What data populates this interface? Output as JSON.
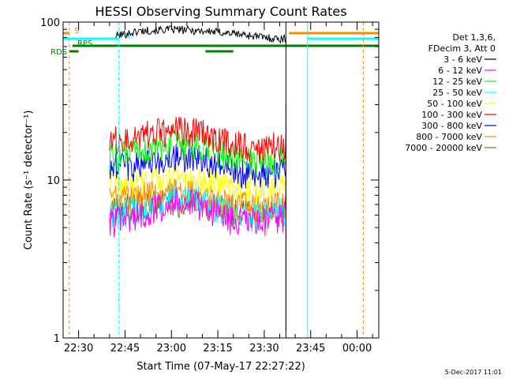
{
  "chart_data": {
    "type": "line",
    "title": "HESSI Observing Summary Count Rates",
    "xlabel": "Start Time (07-May-17 22:27:22)",
    "ylabel": "Count Rate (s⁻¹ detector⁻¹)",
    "y_scale": "log",
    "ylim": [
      1,
      100
    ],
    "xlim": [
      "22:25",
      "00:07"
    ],
    "x_ticks": [
      "22:30",
      "22:45",
      "23:00",
      "23:15",
      "23:30",
      "23:45",
      "00:00"
    ],
    "y_ticks": [
      "1",
      "10",
      "100"
    ],
    "legend": {
      "placement": "right",
      "header": [
        "Det 1,3,6,",
        "FDecim 3, Att 0"
      ],
      "entries": [
        "3 - 6 keV",
        "6 - 12 keV",
        "12 - 25 keV",
        "25 - 50 keV",
        "50 - 100 keV",
        "100 - 300 keV",
        "300 - 800 keV",
        "800 - 7000 keV",
        "7000 - 20000 keV"
      ]
    },
    "series": [
      {
        "name": "3 - 6 keV",
        "color": "#000000",
        "x": [
          "22:42",
          "22:50",
          "23:00",
          "23:10",
          "23:20",
          "23:30",
          "23:37"
        ],
        "y": [
          82,
          88,
          90,
          88,
          85,
          80,
          78
        ]
      },
      {
        "name": "6 - 12 keV",
        "color": "#ff00ff",
        "x": [
          "22:40",
          "22:50",
          "23:00",
          "23:10",
          "23:20",
          "23:30",
          "23:37"
        ],
        "y": [
          5.5,
          6.0,
          7.5,
          7.0,
          5.5,
          5.5,
          6.0
        ]
      },
      {
        "name": "12 - 25 keV",
        "color": "#00ff00",
        "x": [
          "22:40",
          "22:50",
          "23:00",
          "23:10",
          "23:20",
          "23:30",
          "23:37"
        ],
        "y": [
          14,
          15,
          17,
          16,
          14,
          13,
          14
        ]
      },
      {
        "name": "25 - 50 keV",
        "color": "#00ffff",
        "x": [
          "22:40",
          "22:50",
          "23:00",
          "23:10",
          "23:20",
          "23:30",
          "23:37"
        ],
        "y": [
          6.0,
          6.5,
          8.0,
          7.5,
          6.0,
          6.0,
          6.5
        ]
      },
      {
        "name": "50 - 100 keV",
        "color": "#ffff00",
        "x": [
          "22:40",
          "22:50",
          "23:00",
          "23:10",
          "23:20",
          "23:30",
          "23:37"
        ],
        "y": [
          9.0,
          9.5,
          10.5,
          10.0,
          9.0,
          8.5,
          9.0
        ]
      },
      {
        "name": "100 - 300 keV",
        "color": "#ff0000",
        "x": [
          "22:40",
          "22:50",
          "23:00",
          "23:10",
          "23:20",
          "23:30",
          "23:37"
        ],
        "y": [
          18,
          19,
          21,
          20,
          17,
          16,
          17
        ]
      },
      {
        "name": "300 - 800 keV",
        "color": "#0000ff",
        "x": [
          "22:40",
          "22:50",
          "23:00",
          "23:10",
          "23:20",
          "23:30",
          "23:37"
        ],
        "y": [
          12,
          12.5,
          14,
          13.5,
          11.5,
          11,
          11.5
        ]
      },
      {
        "name": "800 - 7000 keV",
        "color": "#ff8800",
        "x": [
          "22:40",
          "22:50",
          "23:00",
          "23:10",
          "23:20",
          "23:30",
          "23:37"
        ],
        "y": [
          7.5,
          8.0,
          8.5,
          8.0,
          7.0,
          6.8,
          7.0
        ]
      },
      {
        "name": "7000 - 20000 keV",
        "color": "#996600",
        "x": [
          "22:40",
          "22:50",
          "23:00",
          "23:10",
          "23:20",
          "23:30",
          "23:37"
        ],
        "y": [
          6.5,
          7.0,
          7.5,
          7.0,
          6.5,
          6.3,
          6.5
        ]
      }
    ],
    "flag_bars": [
      {
        "label": "S",
        "color": "#ff8800",
        "segments": [
          [
            "22:25",
            "22:27"
          ],
          [
            "23:38",
            "00:07"
          ]
        ]
      },
      {
        "label": "N",
        "color": "#00ffff",
        "segments": [
          [
            "22:25",
            "22:43"
          ],
          [
            "23:44",
            "00:07"
          ]
        ]
      },
      {
        "label": "RDS",
        "color": "#008000",
        "segments": [
          [
            "22:27",
            "22:30"
          ],
          [
            "23:11",
            "23:20"
          ]
        ]
      },
      {
        "label": "RPS",
        "color": "#008000",
        "segments": [
          [
            "22:28",
            "00:07"
          ]
        ]
      }
    ],
    "vertical_markers": [
      {
        "color": "#ff8800",
        "x": "22:27"
      },
      {
        "color": "#00ffff",
        "x": "22:43"
      },
      {
        "color": "#00ffff",
        "x": "23:44"
      },
      {
        "color": "#ff8800",
        "x": "00:02"
      },
      {
        "color": "#000000",
        "x": "23:37"
      }
    ]
  },
  "footer": {
    "timestamp": "5-Dec-2017 11:01"
  }
}
